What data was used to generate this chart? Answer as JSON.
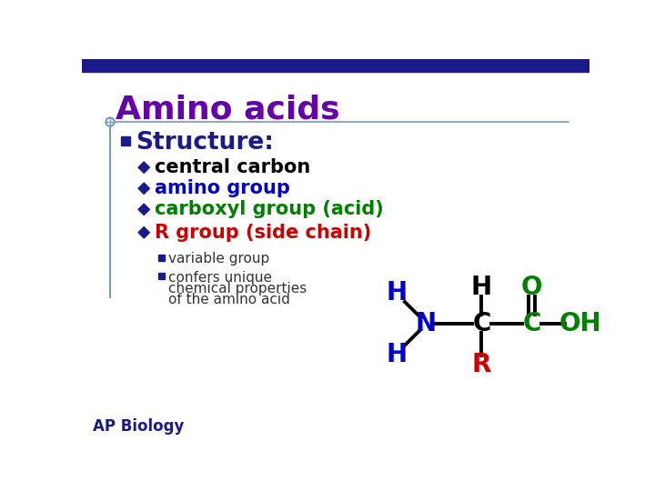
{
  "title": "Amino acids",
  "title_color": "#6600aa",
  "header_bar_color": "#1a1a8c",
  "background_color": "#ffffff",
  "bullet1": "Structure:",
  "bullet1_color": "#1a1a8c",
  "sub_bullets": [
    {
      "text": "central carbon",
      "color": "#000000"
    },
    {
      "text": "amino group",
      "color": "#0000cc"
    },
    {
      "text": "carboxyl group (acid)",
      "color": "#008000"
    },
    {
      "text": "R group (side chain)",
      "color": "#cc0000"
    }
  ],
  "sub_sub_bullets": [
    "variable group",
    "confers unique\nchemical properties\nof the amino acid"
  ],
  "footer": "AP Biology",
  "footer_color": "#1a1a8c",
  "diamond_color": "#1a1a8c",
  "square_color": "#1a1a8c",
  "mol_H_top_color": "#000000",
  "mol_N_color": "#0000cc",
  "mol_H_N_color": "#0000cc",
  "mol_C_color": "#000000",
  "mol_bond_color": "#000000",
  "mol_O_color": "#008000",
  "mol_C2_color": "#008000",
  "mol_OH_color": "#008000",
  "mol_R_color": "#cc0000",
  "line_color": "#7799bb",
  "crosshair_color": "#7799bb"
}
